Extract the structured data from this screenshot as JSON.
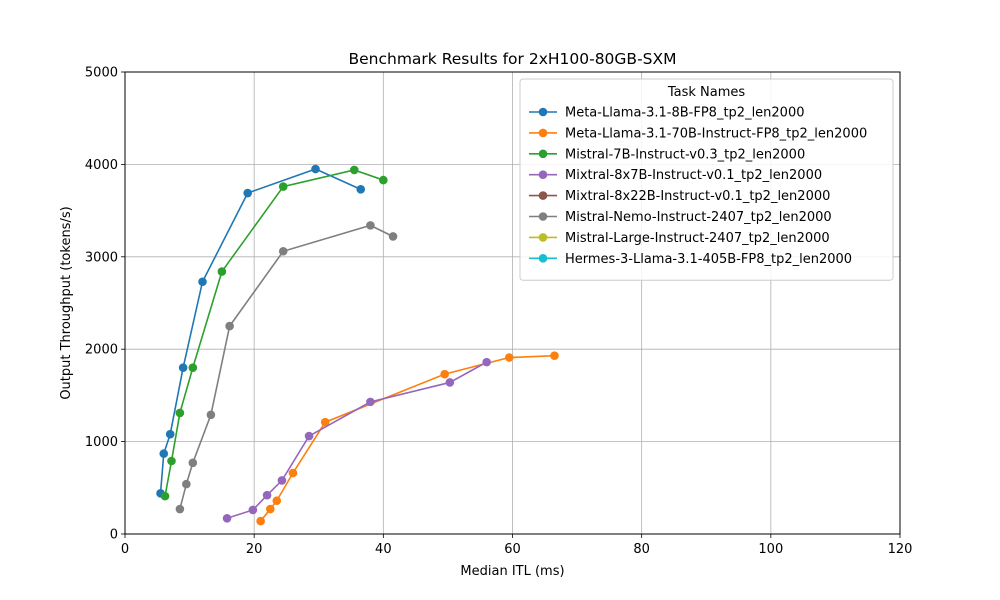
{
  "chart_data": {
    "type": "line",
    "title": "Benchmark Results for 2xH100-80GB-SXM",
    "xlabel": "Median ITL (ms)",
    "ylabel": "Output Throughput (tokens/s)",
    "xlim": [
      0,
      120
    ],
    "ylim": [
      0,
      5000
    ],
    "xticks": [
      0,
      20,
      40,
      60,
      80,
      100,
      120
    ],
    "yticks": [
      0,
      1000,
      2000,
      3000,
      4000,
      5000
    ],
    "grid": true,
    "legend": {
      "title": "Task Names",
      "placement": "upper right"
    },
    "series": [
      {
        "name": "Meta-Llama-3.1-8B-FP8_tp2_len2000",
        "color": "#1f77b4",
        "points": [
          [
            5.5,
            440
          ],
          [
            6.0,
            870
          ],
          [
            7.0,
            1080
          ],
          [
            9.0,
            1800
          ],
          [
            12.0,
            2730
          ],
          [
            19.0,
            3690
          ],
          [
            29.5,
            3950
          ],
          [
            36.5,
            3730
          ]
        ]
      },
      {
        "name": "Meta-Llama-3.1-70B-Instruct-FP8_tp2_len2000",
        "color": "#ff7f0e",
        "points": [
          [
            21.0,
            140
          ],
          [
            22.5,
            270
          ],
          [
            23.5,
            360
          ],
          [
            26.0,
            660
          ],
          [
            31.0,
            1210
          ],
          [
            49.5,
            1730
          ],
          [
            59.5,
            1910
          ],
          [
            66.5,
            1930
          ]
        ]
      },
      {
        "name": "Mistral-7B-Instruct-v0.3_tp2_len2000",
        "color": "#2ca02c",
        "points": [
          [
            6.2,
            410
          ],
          [
            7.2,
            790
          ],
          [
            8.5,
            1310
          ],
          [
            10.5,
            1800
          ],
          [
            15.0,
            2840
          ],
          [
            24.5,
            3760
          ],
          [
            35.5,
            3940
          ],
          [
            40.0,
            3830
          ]
        ]
      },
      {
        "name": "Mixtral-8x7B-Instruct-v0.1_tp2_len2000",
        "color": "#9467bd",
        "points": [
          [
            15.8,
            170
          ],
          [
            19.8,
            260
          ],
          [
            22.0,
            420
          ],
          [
            24.3,
            580
          ],
          [
            28.5,
            1060
          ],
          [
            38.0,
            1430
          ],
          [
            50.3,
            1640
          ],
          [
            56.0,
            1860
          ]
        ]
      },
      {
        "name": "Mixtral-8x22B-Instruct-v0.1_tp2_len2000",
        "color": "#8c564b",
        "points": []
      },
      {
        "name": "Mistral-Nemo-Instruct-2407_tp2_len2000",
        "color": "#7f7f7f",
        "points": [
          [
            8.5,
            270
          ],
          [
            9.5,
            540
          ],
          [
            10.5,
            770
          ],
          [
            13.3,
            1290
          ],
          [
            16.2,
            2250
          ],
          [
            24.5,
            3060
          ],
          [
            38.0,
            3340
          ],
          [
            41.5,
            3220
          ]
        ]
      },
      {
        "name": "Mistral-Large-Instruct-2407_tp2_len2000",
        "color": "#bcbd22",
        "points": []
      },
      {
        "name": "Hermes-3-Llama-3.1-405B-FP8_tp2_len2000",
        "color": "#17becf",
        "points": []
      }
    ]
  }
}
